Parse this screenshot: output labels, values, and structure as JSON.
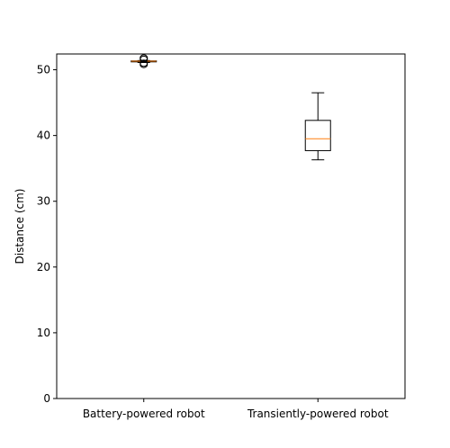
{
  "chart_data": {
    "type": "boxplot",
    "title": "",
    "xlabel": "",
    "ylabel": "Distance (cm)",
    "ylim": [
      0,
      52.4
    ],
    "yticks": [
      0,
      10,
      20,
      30,
      40,
      50
    ],
    "categories": [
      "Battery-powered robot",
      "Transiently-powered robot"
    ],
    "boxes": [
      {
        "name": "Battery-powered robot",
        "whisker_low": 51.1,
        "q1": 51.2,
        "median": 51.3,
        "q3": 51.35,
        "whisker_high": 51.4,
        "outliers": [
          50.8,
          51.0,
          51.6,
          51.8
        ]
      },
      {
        "name": "Transiently-powered robot",
        "whisker_low": 36.3,
        "q1": 37.7,
        "median": 39.5,
        "q3": 42.3,
        "whisker_high": 46.5,
        "outliers": []
      }
    ],
    "grid": false,
    "colors": {
      "box": "#000000",
      "median": "#ff7f0e",
      "axis": "#000000"
    }
  }
}
